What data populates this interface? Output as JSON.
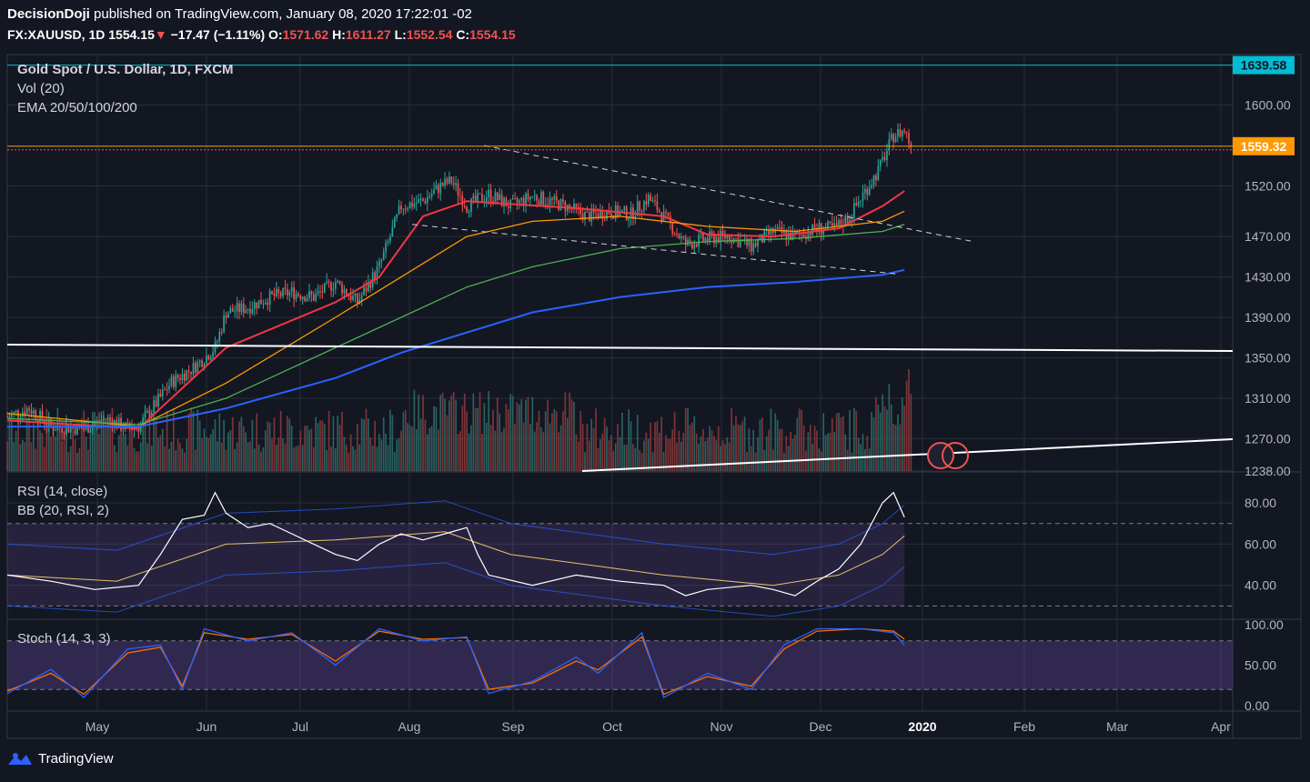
{
  "header": {
    "publisher": "DecisionDoji",
    "published_text": "published on TradingView.com, January 08, 2020 17:22:01 -02",
    "symbol": "FX:XAUUSD, 1D",
    "last": "1554.15",
    "change_arrow": "▼",
    "change": "−17.47 (−1.11%)",
    "o_label": "O:",
    "o": "1571.62",
    "h_label": "H:",
    "h": "1611.27",
    "l_label": "L:",
    "l": "1552.54",
    "c_label": "C:",
    "c": "1554.15"
  },
  "footer": {
    "brand": "TradingView"
  },
  "colors": {
    "background": "#131722",
    "grid": "#2a2e39",
    "bull": "#26a69a",
    "bear": "#ef5350",
    "ema20": "#f23645",
    "ema50": "#ff9800",
    "ema100": "#4caf50",
    "ema200": "#2962ff",
    "cyan_level": "#00bcd4",
    "orange_level": "#ff9800"
  },
  "chart_data": [
    {
      "type": "candlestick",
      "title": "Gold Spot / U.S. Dollar, 1D, FXCM",
      "legend": [
        "Vol (20)",
        "EMA 20/50/100/200"
      ],
      "x_labels": [
        "May",
        "Jun",
        "Jul",
        "Aug",
        "Sep",
        "Oct",
        "Nov",
        "Dec",
        "2020",
        "Feb",
        "Mar",
        "Apr"
      ],
      "y_ticks": [
        1600,
        1520,
        1470,
        1430,
        1390,
        1350,
        1310,
        1270,
        1238
      ],
      "y_tick_labels": [
        "1600.00",
        "1520.00",
        "1470.00",
        "1430.00",
        "1390.00",
        "1350.00",
        "1310.00",
        "1270.00",
        "1238.00"
      ],
      "ylim": [
        1238,
        1650
      ],
      "price_path": [
        [
          0,
          1292
        ],
        [
          10,
          1300
        ],
        [
          20,
          1282
        ],
        [
          35,
          1280
        ],
        [
          45,
          1290
        ],
        [
          55,
          1280
        ],
        [
          60,
          1282
        ],
        [
          65,
          1296
        ],
        [
          75,
          1326
        ],
        [
          85,
          1340
        ],
        [
          95,
          1360
        ],
        [
          100,
          1395
        ],
        [
          110,
          1400
        ],
        [
          120,
          1410
        ],
        [
          130,
          1415
        ],
        [
          140,
          1410
        ],
        [
          150,
          1425
        ],
        [
          160,
          1405
        ],
        [
          170,
          1440
        ],
        [
          180,
          1500
        ],
        [
          190,
          1505
        ],
        [
          198,
          1520
        ],
        [
          203,
          1525
        ],
        [
          210,
          1500
        ],
        [
          220,
          1512
        ],
        [
          230,
          1500
        ],
        [
          240,
          1510
        ],
        [
          248,
          1505
        ],
        [
          255,
          1500
        ],
        [
          265,
          1490
        ],
        [
          275,
          1495
        ],
        [
          285,
          1492
        ],
        [
          293,
          1508
        ],
        [
          300,
          1490
        ],
        [
          310,
          1462
        ],
        [
          320,
          1468
        ],
        [
          330,
          1470
        ],
        [
          340,
          1460
        ],
        [
          350,
          1475
        ],
        [
          360,
          1470
        ],
        [
          370,
          1478
        ],
        [
          378,
          1478
        ],
        [
          385,
          1490
        ],
        [
          392,
          1515
        ],
        [
          398,
          1535
        ],
        [
          405,
          1570
        ],
        [
          410,
          1575
        ],
        [
          413,
          1560
        ]
      ],
      "price_levels": [
        {
          "value": 1639.58,
          "label": "1639.58",
          "color": "#00bcd4"
        },
        {
          "value": 1559.32,
          "label": "1559.32",
          "color": "#ff9800"
        }
      ],
      "ema_series": [
        {
          "name": "EMA 20",
          "color": "#f23645",
          "points": [
            [
              0,
              1288
            ],
            [
              60,
              1280
            ],
            [
              100,
              1360
            ],
            [
              150,
              1405
            ],
            [
              170,
              1430
            ],
            [
              190,
              1490
            ],
            [
              210,
              1505
            ],
            [
              260,
              1498
            ],
            [
              300,
              1490
            ],
            [
              320,
              1472
            ],
            [
              350,
              1470
            ],
            [
              380,
              1478
            ],
            [
              400,
              1500
            ],
            [
              410,
              1515
            ]
          ]
        },
        {
          "name": "EMA 50",
          "color": "#ff9800",
          "points": [
            [
              0,
              1295
            ],
            [
              60,
              1282
            ],
            [
              100,
              1325
            ],
            [
              150,
              1390
            ],
            [
              180,
              1430
            ],
            [
              210,
              1470
            ],
            [
              240,
              1485
            ],
            [
              280,
              1490
            ],
            [
              320,
              1480
            ],
            [
              360,
              1475
            ],
            [
              400,
              1485
            ],
            [
              410,
              1495
            ]
          ]
        },
        {
          "name": "EMA 100",
          "color": "#4caf50",
          "points": [
            [
              0,
              1290
            ],
            [
              60,
              1284
            ],
            [
              100,
              1310
            ],
            [
              150,
              1360
            ],
            [
              180,
              1390
            ],
            [
              210,
              1420
            ],
            [
              240,
              1440
            ],
            [
              280,
              1458
            ],
            [
              320,
              1465
            ],
            [
              360,
              1468
            ],
            [
              400,
              1475
            ],
            [
              410,
              1482
            ]
          ]
        },
        {
          "name": "EMA 200",
          "color": "#2962ff",
          "points": [
            [
              0,
              1282
            ],
            [
              60,
              1282
            ],
            [
              100,
              1300
            ],
            [
              150,
              1330
            ],
            [
              180,
              1355
            ],
            [
              210,
              1375
            ],
            [
              240,
              1395
            ],
            [
              280,
              1410
            ],
            [
              320,
              1420
            ],
            [
              360,
              1425
            ],
            [
              400,
              1432
            ],
            [
              410,
              1437
            ]
          ]
        }
      ]
    },
    {
      "type": "line",
      "title": "RSI (14, close)",
      "legend": [
        "BB (20, RSI, 2)"
      ],
      "y_ticks": [
        80,
        60,
        40
      ],
      "y_tick_labels": [
        "80.00",
        "60.00",
        "40.00"
      ],
      "ylim": [
        24,
        95
      ],
      "levels": [
        70,
        30
      ],
      "rsi": [
        [
          0,
          45
        ],
        [
          20,
          42
        ],
        [
          40,
          38
        ],
        [
          60,
          40
        ],
        [
          70,
          55
        ],
        [
          80,
          72
        ],
        [
          90,
          74
        ],
        [
          95,
          85
        ],
        [
          100,
          75
        ],
        [
          110,
          68
        ],
        [
          120,
          70
        ],
        [
          130,
          65
        ],
        [
          140,
          60
        ],
        [
          150,
          55
        ],
        [
          160,
          52
        ],
        [
          170,
          60
        ],
        [
          180,
          65
        ],
        [
          190,
          62
        ],
        [
          200,
          65
        ],
        [
          210,
          68
        ],
        [
          215,
          55
        ],
        [
          220,
          45
        ],
        [
          240,
          40
        ],
        [
          260,
          45
        ],
        [
          280,
          42
        ],
        [
          300,
          40
        ],
        [
          310,
          35
        ],
        [
          320,
          38
        ],
        [
          340,
          40
        ],
        [
          350,
          38
        ],
        [
          360,
          35
        ],
        [
          370,
          42
        ],
        [
          380,
          48
        ],
        [
          390,
          60
        ],
        [
          400,
          80
        ],
        [
          405,
          85
        ],
        [
          410,
          73
        ]
      ],
      "bb_basis": [
        [
          0,
          45
        ],
        [
          50,
          42
        ],
        [
          100,
          60
        ],
        [
          150,
          62
        ],
        [
          200,
          66
        ],
        [
          230,
          55
        ],
        [
          300,
          45
        ],
        [
          350,
          40
        ],
        [
          380,
          45
        ],
        [
          400,
          55
        ],
        [
          410,
          64
        ]
      ]
    },
    {
      "type": "line",
      "title": "Stoch (14, 3, 3)",
      "y_ticks": [
        100,
        50,
        0
      ],
      "y_tick_labels": [
        "100.00",
        "50.00",
        "0.00"
      ],
      "ylim": [
        0,
        100
      ],
      "levels": [
        80,
        20
      ],
      "k": [
        [
          0,
          15
        ],
        [
          20,
          45
        ],
        [
          35,
          10
        ],
        [
          55,
          70
        ],
        [
          70,
          75
        ],
        [
          80,
          20
        ],
        [
          90,
          95
        ],
        [
          110,
          80
        ],
        [
          130,
          90
        ],
        [
          150,
          50
        ],
        [
          170,
          95
        ],
        [
          190,
          80
        ],
        [
          210,
          85
        ],
        [
          220,
          15
        ],
        [
          240,
          30
        ],
        [
          260,
          60
        ],
        [
          270,
          40
        ],
        [
          290,
          90
        ],
        [
          300,
          10
        ],
        [
          320,
          40
        ],
        [
          340,
          20
        ],
        [
          355,
          75
        ],
        [
          370,
          95
        ],
        [
          390,
          95
        ],
        [
          405,
          90
        ],
        [
          410,
          75
        ]
      ],
      "d": [
        [
          0,
          18
        ],
        [
          20,
          40
        ],
        [
          35,
          14
        ],
        [
          55,
          65
        ],
        [
          70,
          72
        ],
        [
          80,
          24
        ],
        [
          90,
          90
        ],
        [
          110,
          82
        ],
        [
          130,
          88
        ],
        [
          150,
          55
        ],
        [
          170,
          92
        ],
        [
          190,
          82
        ],
        [
          210,
          84
        ],
        [
          220,
          20
        ],
        [
          240,
          28
        ],
        [
          260,
          55
        ],
        [
          270,
          44
        ],
        [
          290,
          85
        ],
        [
          300,
          14
        ],
        [
          320,
          36
        ],
        [
          340,
          24
        ],
        [
          355,
          70
        ],
        [
          370,
          92
        ],
        [
          390,
          95
        ],
        [
          405,
          92
        ],
        [
          410,
          82
        ]
      ]
    }
  ]
}
